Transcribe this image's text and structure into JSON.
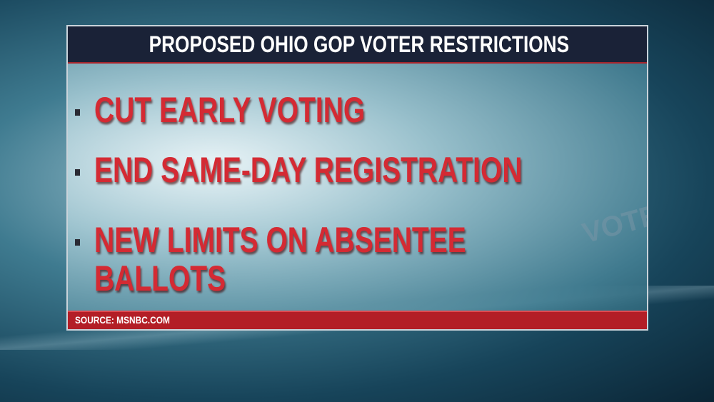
{
  "graphic": {
    "title": "PROPOSED OHIO GOP VOTER RESTRICTIONS",
    "bullets": [
      {
        "text": "CUT EARLY VOTING"
      },
      {
        "text": "END SAME-DAY REGISTRATION"
      },
      {
        "text": "NEW LIMITS ON ABSENTEE",
        "text2": "BALLOTS"
      }
    ],
    "background_label": "VOTE",
    "source": "SOURCE: MSNBC.COM"
  },
  "colors": {
    "header": "#1a2237",
    "bullet_text": "#d42a33",
    "source_bar": "#b31e26"
  }
}
